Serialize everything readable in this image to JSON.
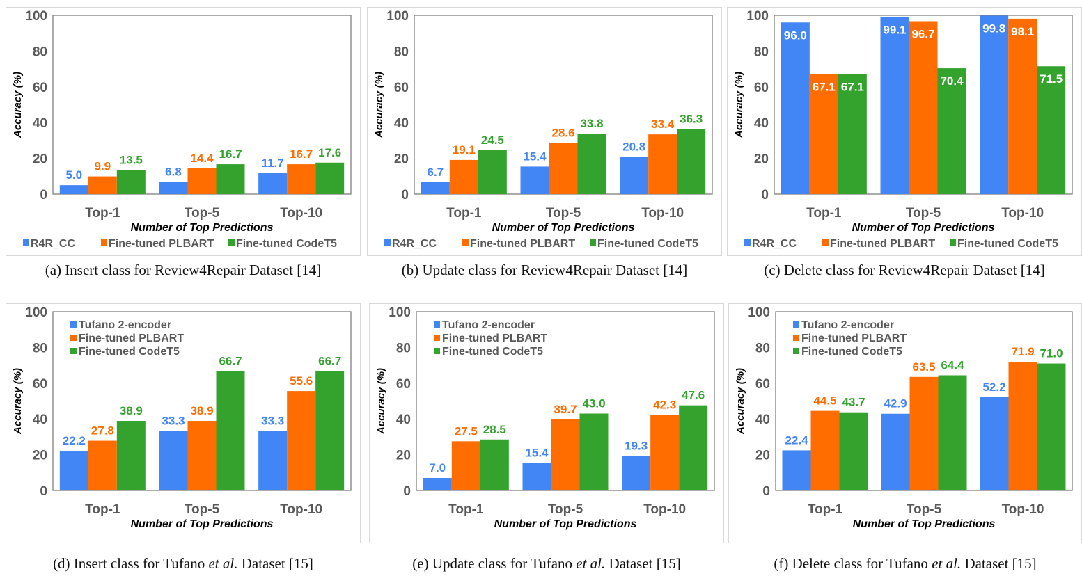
{
  "colors": {
    "s0": "#4285F4",
    "s1": "#FF6D01",
    "s2": "#34A32E",
    "axis": "#595959",
    "grid_frame": "#7f7f7f"
  },
  "chart_data": [
    {
      "type": "bar",
      "categories": [
        "Top-1",
        "Top-5",
        "Top-10"
      ],
      "series": [
        {
          "name": "R4R_CC",
          "values": [
            5.0,
            6.8,
            11.7
          ]
        },
        {
          "name": "Fine-tuned PLBART",
          "values": [
            9.9,
            14.4,
            16.7
          ]
        },
        {
          "name": "Fine-tuned CodeT5",
          "values": [
            13.5,
            16.7,
            17.6
          ]
        }
      ],
      "xlabel": "Number of Top Predictions",
      "ylabel": "Accuracy (%)",
      "ylim": [
        0,
        100
      ],
      "yticks": [
        0,
        20,
        40,
        60,
        80,
        100
      ],
      "legend": "bottom",
      "label_style": "above",
      "caption": {
        "pre": "(a)  Insert class for Review4Repair Dataset [14]",
        "em": "",
        "post": ""
      }
    },
    {
      "type": "bar",
      "categories": [
        "Top-1",
        "Top-5",
        "Top-10"
      ],
      "series": [
        {
          "name": "R4R_CC",
          "values": [
            6.7,
            15.4,
            20.8
          ]
        },
        {
          "name": "Fine-tuned PLBART",
          "values": [
            19.1,
            28.6,
            33.4
          ]
        },
        {
          "name": "Fine-tuned CodeT5",
          "values": [
            24.5,
            33.8,
            36.3
          ]
        }
      ],
      "xlabel": "Number of Top Predictions",
      "ylabel": "Accuracy (%)",
      "ylim": [
        0,
        100
      ],
      "yticks": [
        0,
        20,
        40,
        60,
        80,
        100
      ],
      "legend": "bottom",
      "label_style": "above",
      "caption": {
        "pre": "(b)  Update class for Review4Repair Dataset [14]",
        "em": "",
        "post": ""
      }
    },
    {
      "type": "bar",
      "categories": [
        "Top-1",
        "Top-5",
        "Top-10"
      ],
      "series": [
        {
          "name": "R4R_CC",
          "values": [
            96.0,
            99.1,
            99.8
          ]
        },
        {
          "name": "Fine-tuned PLBART",
          "values": [
            67.1,
            96.7,
            98.1
          ]
        },
        {
          "name": "Fine-tuned CodeT5",
          "values": [
            67.1,
            70.4,
            71.5
          ]
        }
      ],
      "xlabel": "Number of Top Predictions",
      "ylabel": "Accuracy (%)",
      "ylim": [
        0,
        100
      ],
      "yticks": [
        0,
        20,
        40,
        60,
        80,
        100
      ],
      "legend": "bottom",
      "label_style": "inside",
      "caption": {
        "pre": "(c)  Delete class for Review4Repair Dataset [14]",
        "em": "",
        "post": ""
      }
    },
    {
      "type": "bar",
      "categories": [
        "Top-1",
        "Top-5",
        "Top-10"
      ],
      "series": [
        {
          "name": "Tufano 2-encoder",
          "values": [
            22.2,
            33.3,
            33.3
          ]
        },
        {
          "name": "Fine-tuned PLBART",
          "values": [
            27.8,
            38.9,
            55.6
          ]
        },
        {
          "name": "Fine-tuned CodeT5",
          "values": [
            38.9,
            66.7,
            66.7
          ]
        }
      ],
      "xlabel": "Number of Top Predictions",
      "ylabel": "Accuracy (%)",
      "ylim": [
        0,
        100
      ],
      "yticks": [
        0,
        20,
        40,
        60,
        80,
        100
      ],
      "legend": "top-left",
      "label_style": "above",
      "caption": {
        "pre": "(d)  Insert class for Tufano ",
        "em": "et al.",
        "post": "  Dataset [15]"
      }
    },
    {
      "type": "bar",
      "categories": [
        "Top-1",
        "Top-5",
        "Top-10"
      ],
      "series": [
        {
          "name": "Tufano 2-encoder",
          "values": [
            7.0,
            15.4,
            19.3
          ]
        },
        {
          "name": "Fine-tuned PLBART",
          "values": [
            27.5,
            39.7,
            42.3
          ]
        },
        {
          "name": "Fine-tuned CodeT5",
          "values": [
            28.5,
            43.0,
            47.6
          ]
        }
      ],
      "xlabel": "Number of Top Predictions",
      "ylabel": "Accuracy (%)",
      "ylim": [
        0,
        100
      ],
      "yticks": [
        0,
        20,
        40,
        60,
        80,
        100
      ],
      "legend": "top-left",
      "label_style": "above",
      "caption": {
        "pre": "(e)  Update class for Tufano ",
        "em": "et al.",
        "post": "  Dataset [15]"
      }
    },
    {
      "type": "bar",
      "categories": [
        "Top-1",
        "Top-5",
        "Top-10"
      ],
      "series": [
        {
          "name": "Tufano 2-encoder",
          "values": [
            22.4,
            42.9,
            52.2
          ]
        },
        {
          "name": "Fine-tuned PLBART",
          "values": [
            44.5,
            63.5,
            71.9
          ]
        },
        {
          "name": "Fine-tuned CodeT5",
          "values": [
            43.7,
            64.4,
            71.0
          ]
        }
      ],
      "xlabel": "Number of Top Predictions",
      "ylabel": "Accuracy (%)",
      "ylim": [
        0,
        100
      ],
      "yticks": [
        0,
        20,
        40,
        60,
        80,
        100
      ],
      "legend": "top-left",
      "label_style": "above",
      "caption": {
        "pre": "(f)  Delete class for Tufano ",
        "em": "et al.",
        "post": "  Dataset [15]"
      }
    }
  ]
}
